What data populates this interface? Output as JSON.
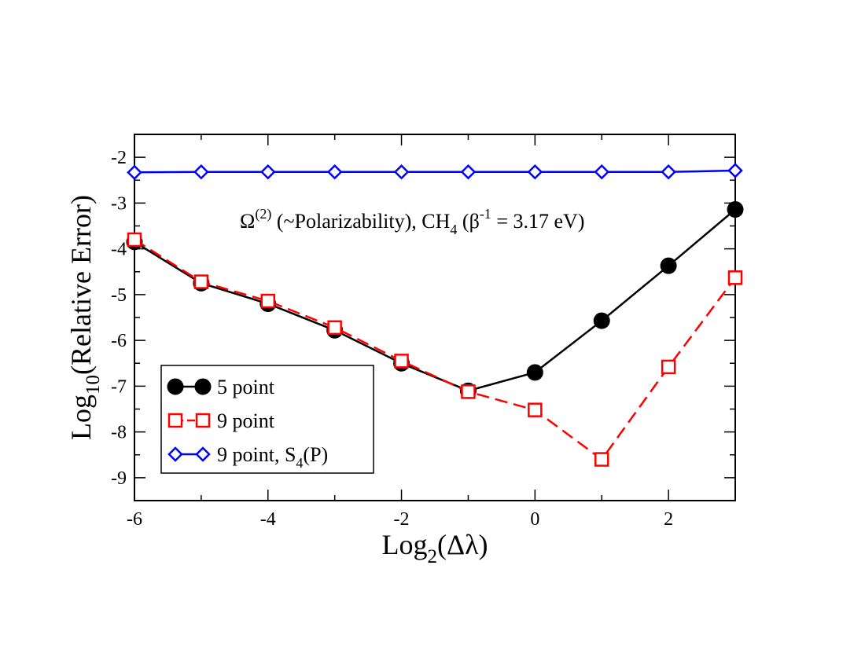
{
  "chart_data": {
    "type": "line",
    "xlabel_main": "Log",
    "xlabel_sub": "2",
    "xlabel_tail": "(Δλ)",
    "ylabel_main": "Log",
    "ylabel_sub": "10",
    "ylabel_tail": "(Relative Error)",
    "xlim": [
      -6,
      3
    ],
    "ylim": [
      -9.5,
      -1.5
    ],
    "x_ticks": [
      -6,
      -4,
      -2,
      0,
      2
    ],
    "x_tick_labels": [
      "-6",
      "-4",
      "-2",
      "0",
      "2"
    ],
    "y_ticks": [
      -2,
      -3,
      -4,
      -5,
      -6,
      -7,
      -8,
      -9
    ],
    "y_tick_labels": [
      "-2",
      "-3",
      "-4",
      "-5",
      "-6",
      "-7",
      "-8",
      "-9"
    ],
    "annotation": {
      "omega": "Ω",
      "omega_sup": "(2)",
      "mid": " (~Polarizability), CH",
      "ch_sub": "4",
      "paren": " (β",
      "beta_sup": "-1",
      "tail": " = 3.17 eV)"
    },
    "series": [
      {
        "name": "5 point",
        "color": "#000000",
        "marker": "circle",
        "dashed": false,
        "x": [
          -6,
          -5,
          -4,
          -3,
          -2,
          -1,
          0,
          1,
          2,
          3
        ],
        "y": [
          -3.85,
          -4.75,
          -5.2,
          -5.78,
          -6.5,
          -7.1,
          -6.7,
          -5.57,
          -4.37,
          -3.14
        ]
      },
      {
        "name": "9 point",
        "color": "#ff0000",
        "marker": "square",
        "dashed": true,
        "x": [
          -6,
          -5,
          -4,
          -3,
          -2,
          -1,
          0,
          1,
          2,
          3
        ],
        "y": [
          -3.8,
          -4.72,
          -5.14,
          -5.72,
          -6.45,
          -7.12,
          -7.52,
          -8.6,
          -6.58,
          -4.63
        ]
      },
      {
        "name": "9 point, S4(P)",
        "color": "#0000ff",
        "marker": "diamond",
        "dashed": false,
        "x": [
          -6,
          -5,
          -4,
          -3,
          -2,
          -1,
          0,
          1,
          2,
          3
        ],
        "y": [
          -2.33,
          -2.32,
          -2.32,
          -2.32,
          -2.32,
          -2.32,
          -2.32,
          -2.32,
          -2.32,
          -2.29
        ]
      }
    ],
    "legend": [
      {
        "main": "5 point",
        "sub": "",
        "tail": ""
      },
      {
        "main": "9 point",
        "sub": "",
        "tail": ""
      },
      {
        "main": "9 point, S",
        "sub": "4",
        "tail": "(P)"
      }
    ],
    "legend_position": "bottom-left",
    "grid": false
  }
}
